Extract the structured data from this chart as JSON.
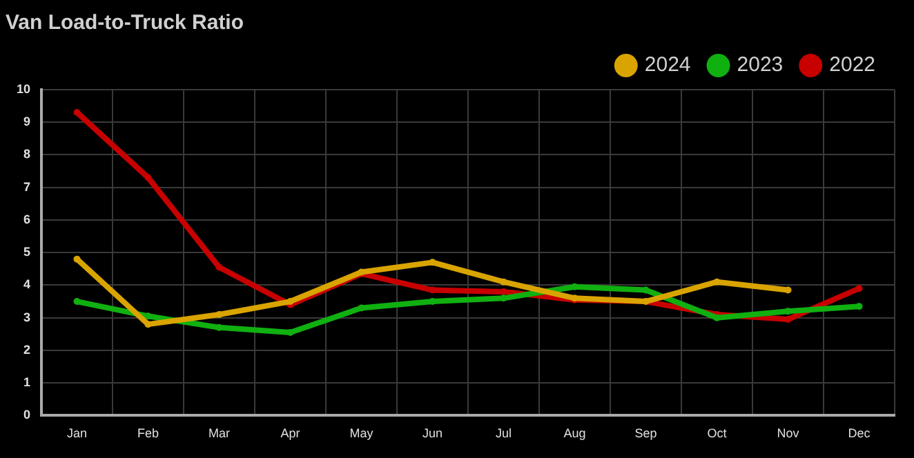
{
  "chart_data": {
    "type": "line",
    "title": "Van Load-to-Truck Ratio",
    "categories": [
      "Jan",
      "Feb",
      "Mar",
      "Apr",
      "May",
      "Jun",
      "Jul",
      "Aug",
      "Sep",
      "Oct",
      "Nov",
      "Dec"
    ],
    "series": [
      {
        "name": "2024",
        "color": "#d9a400",
        "values": [
          4.8,
          2.8,
          3.1,
          3.5,
          4.4,
          4.7,
          4.1,
          3.6,
          3.5,
          4.1,
          3.85,
          null
        ]
      },
      {
        "name": "2023",
        "color": "#10b010",
        "values": [
          3.5,
          3.05,
          2.7,
          2.55,
          3.3,
          3.5,
          3.6,
          3.95,
          3.85,
          3.0,
          3.2,
          3.35
        ]
      },
      {
        "name": "2022",
        "color": "#c80000",
        "values": [
          9.3,
          7.3,
          4.55,
          3.4,
          4.35,
          3.85,
          3.8,
          3.55,
          3.5,
          3.1,
          2.95,
          3.9
        ]
      }
    ],
    "ylim": [
      0,
      10
    ],
    "yticks": [
      0,
      1,
      2,
      3,
      4,
      5,
      6,
      7,
      8,
      9,
      10
    ],
    "grid": true,
    "legend": "top right",
    "marker": "circle",
    "line_style": "solid"
  }
}
